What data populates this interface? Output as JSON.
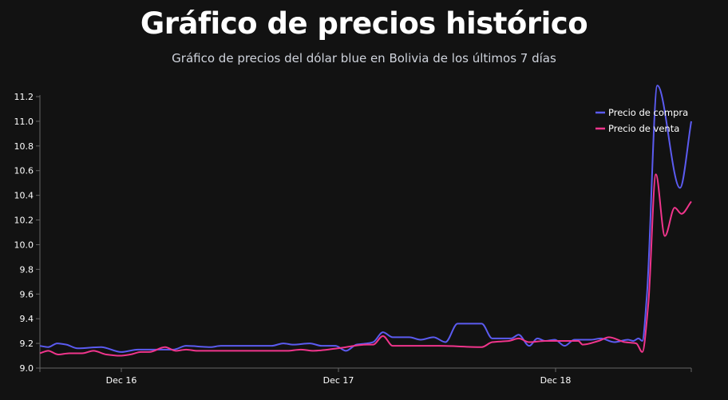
{
  "title": "Gráfico de precios histórico",
  "subtitle": "Gráfico de precios del dólar blue en Bolivia de los últimos 7 días",
  "chart_data": {
    "type": "line",
    "title": "Gráfico de precios histórico",
    "subtitle": "Gráfico de precios del dólar blue en Bolivia de los últimos 7 días",
    "xlabel": "",
    "ylabel": "",
    "xlim": [
      "Dec 15 15:00",
      "Dec 18 15:00"
    ],
    "ylim": [
      9.0,
      11.2
    ],
    "x_ticks": [
      "Dec 16",
      "Dec 17",
      "Dec 18"
    ],
    "y_ticks": [
      "9.0",
      "9.2",
      "9.4",
      "9.6",
      "9.8",
      "10.0",
      "10.2",
      "10.4",
      "10.6",
      "10.8",
      "11.0",
      "11.2"
    ],
    "grid": false,
    "legend_position": "top-right",
    "series": [
      {
        "name": "Precio de compra",
        "color": "#5b5bf0",
        "points": [
          [
            "Dec 15 15:00",
            9.18
          ],
          [
            "Dec 15 15:55",
            9.17
          ],
          [
            "Dec 15 16:55",
            9.2
          ],
          [
            "Dec 15 17:55",
            9.19
          ],
          [
            "Dec 15 19:10",
            9.16
          ],
          [
            "Dec 15 21:45",
            9.17
          ],
          [
            "Dec 16 00:00",
            9.13
          ],
          [
            "Dec 16 01:50",
            9.15
          ],
          [
            "Dec 16 05:45",
            9.15
          ],
          [
            "Dec 16 07:10",
            9.18
          ],
          [
            "Dec 16 09:50",
            9.17
          ],
          [
            "Dec 16 11:00",
            9.18
          ],
          [
            "Dec 16 16:35",
            9.18
          ],
          [
            "Dec 16 17:55",
            9.2
          ],
          [
            "Dec 16 19:00",
            9.19
          ],
          [
            "Dec 16 20:50",
            9.2
          ],
          [
            "Dec 16 22:10",
            9.18
          ],
          [
            "Dec 16 23:40",
            9.18
          ],
          [
            "Dec 17 00:50",
            9.14
          ],
          [
            "Dec 17 02:00",
            9.19
          ],
          [
            "Dec 17 03:10",
            9.2
          ],
          [
            "Dec 17 03:50",
            9.21
          ],
          [
            "Dec 17 04:55",
            9.29
          ],
          [
            "Dec 17 06:00",
            9.25
          ],
          [
            "Dec 17 07:50",
            9.25
          ],
          [
            "Dec 17 09:05",
            9.23
          ],
          [
            "Dec 17 10:30",
            9.25
          ],
          [
            "Dec 17 11:50",
            9.21
          ],
          [
            "Dec 17 13:10",
            9.36
          ],
          [
            "Dec 17 15:50",
            9.36
          ],
          [
            "Dec 17 17:00",
            9.24
          ],
          [
            "Dec 17 19:05",
            9.24
          ],
          [
            "Dec 17 19:55",
            9.27
          ],
          [
            "Dec 17 21:05",
            9.18
          ],
          [
            "Dec 17 22:00",
            9.24
          ],
          [
            "Dec 17 22:50",
            9.22
          ],
          [
            "Dec 17 23:55",
            9.23
          ],
          [
            "Dec 18 01:00",
            9.18
          ],
          [
            "Dec 18 02:05",
            9.23
          ],
          [
            "Dec 18 03:55",
            9.23
          ],
          [
            "Dec 18 05:00",
            9.24
          ],
          [
            "Dec 18 06:30",
            9.21
          ],
          [
            "Dec 18 08:00",
            9.23
          ],
          [
            "Dec 18 08:35",
            9.22
          ],
          [
            "Dec 18 09:10",
            9.24
          ],
          [
            "Dec 18 09:35",
            9.22
          ],
          [
            "Dec 18 10:05",
            9.58
          ],
          [
            "Dec 18 11:15",
            11.29
          ],
          [
            "Dec 18 13:45",
            10.46
          ],
          [
            "Dec 18 15:00",
            11.0
          ]
        ]
      },
      {
        "name": "Precio de venta",
        "color": "#f0358c",
        "points": [
          [
            "Dec 15 15:00",
            9.12
          ],
          [
            "Dec 15 15:55",
            9.14
          ],
          [
            "Dec 15 17:00",
            9.11
          ],
          [
            "Dec 15 18:15",
            9.12
          ],
          [
            "Dec 15 19:40",
            9.12
          ],
          [
            "Dec 15 20:55",
            9.14
          ],
          [
            "Dec 15 22:20",
            9.11
          ],
          [
            "Dec 15 23:50",
            9.1
          ],
          [
            "Dec 16 01:00",
            9.11
          ],
          [
            "Dec 16 02:10",
            9.13
          ],
          [
            "Dec 16 03:05",
            9.13
          ],
          [
            "Dec 16 04:50",
            9.17
          ],
          [
            "Dec 16 06:00",
            9.14
          ],
          [
            "Dec 16 07:10",
            9.15
          ],
          [
            "Dec 16 08:25",
            9.14
          ],
          [
            "Dec 16 18:20",
            9.14
          ],
          [
            "Dec 16 19:50",
            9.15
          ],
          [
            "Dec 16 21:15",
            9.14
          ],
          [
            "Dec 16 23:55",
            9.16
          ],
          [
            "Dec 17 03:10",
            9.19
          ],
          [
            "Dec 17 03:50",
            9.19
          ],
          [
            "Dec 17 04:55",
            9.26
          ],
          [
            "Dec 17 06:00",
            9.18
          ],
          [
            "Dec 17 08:15",
            9.18
          ],
          [
            "Dec 17 11:05",
            9.18
          ],
          [
            "Dec 17 15:50",
            9.17
          ],
          [
            "Dec 17 17:00",
            9.21
          ],
          [
            "Dec 17 18:50",
            9.22
          ],
          [
            "Dec 17 19:55",
            9.24
          ],
          [
            "Dec 17 21:05",
            9.21
          ],
          [
            "Dec 17 22:50",
            9.22
          ],
          [
            "Dec 18 02:30",
            9.22
          ],
          [
            "Dec 18 03:00",
            9.19
          ],
          [
            "Dec 18 04:45",
            9.22
          ],
          [
            "Dec 18 05:55",
            9.25
          ],
          [
            "Dec 18 07:40",
            9.21
          ],
          [
            "Dec 18 08:55",
            9.2
          ],
          [
            "Dec 18 09:35",
            9.13
          ],
          [
            "Dec 18 10:15",
            9.52
          ],
          [
            "Dec 18 11:05",
            10.57
          ],
          [
            "Dec 18 12:05",
            10.07
          ],
          [
            "Dec 18 13:10",
            10.3
          ],
          [
            "Dec 18 13:55",
            10.25
          ],
          [
            "Dec 18 15:00",
            10.35
          ]
        ]
      }
    ]
  }
}
